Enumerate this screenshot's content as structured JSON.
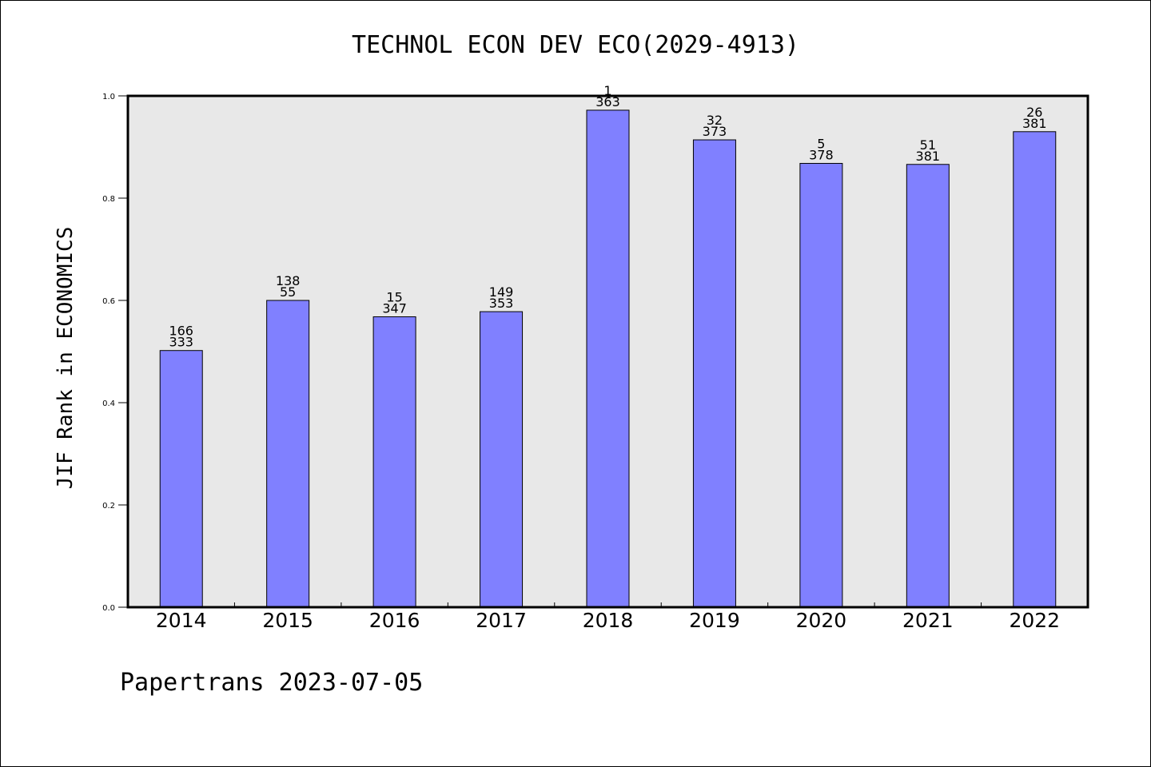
{
  "chart_data": {
    "type": "bar",
    "title": "TECHNOL ECON DEV ECO(2029-4913)",
    "xlabel": "",
    "ylabel": "JIF Rank in ECONOMICS",
    "ylim": [
      0,
      1.0
    ],
    "yticks": [
      "0.0",
      "0.2",
      "0.4",
      "0.6",
      "0.8",
      "1.0"
    ],
    "grid": false,
    "categories": [
      "2014",
      "2015",
      "2016",
      "2017",
      "2018",
      "2019",
      "2020",
      "2021",
      "2022"
    ],
    "values": [
      0.502,
      0.6,
      0.568,
      0.578,
      0.972,
      0.914,
      0.868,
      0.866,
      0.93
    ],
    "labels_top": [
      "166",
      "138",
      "15",
      "149",
      "1",
      "32",
      "5",
      "51",
      "26"
    ],
    "labels_bottom": [
      "333",
      "55",
      "347",
      "353",
      "363",
      "373",
      "378",
      "381",
      "381"
    ],
    "bar_color": "#8080ff",
    "plot_background": "#e8e8e8"
  },
  "footer": "Papertrans 2023-07-05"
}
